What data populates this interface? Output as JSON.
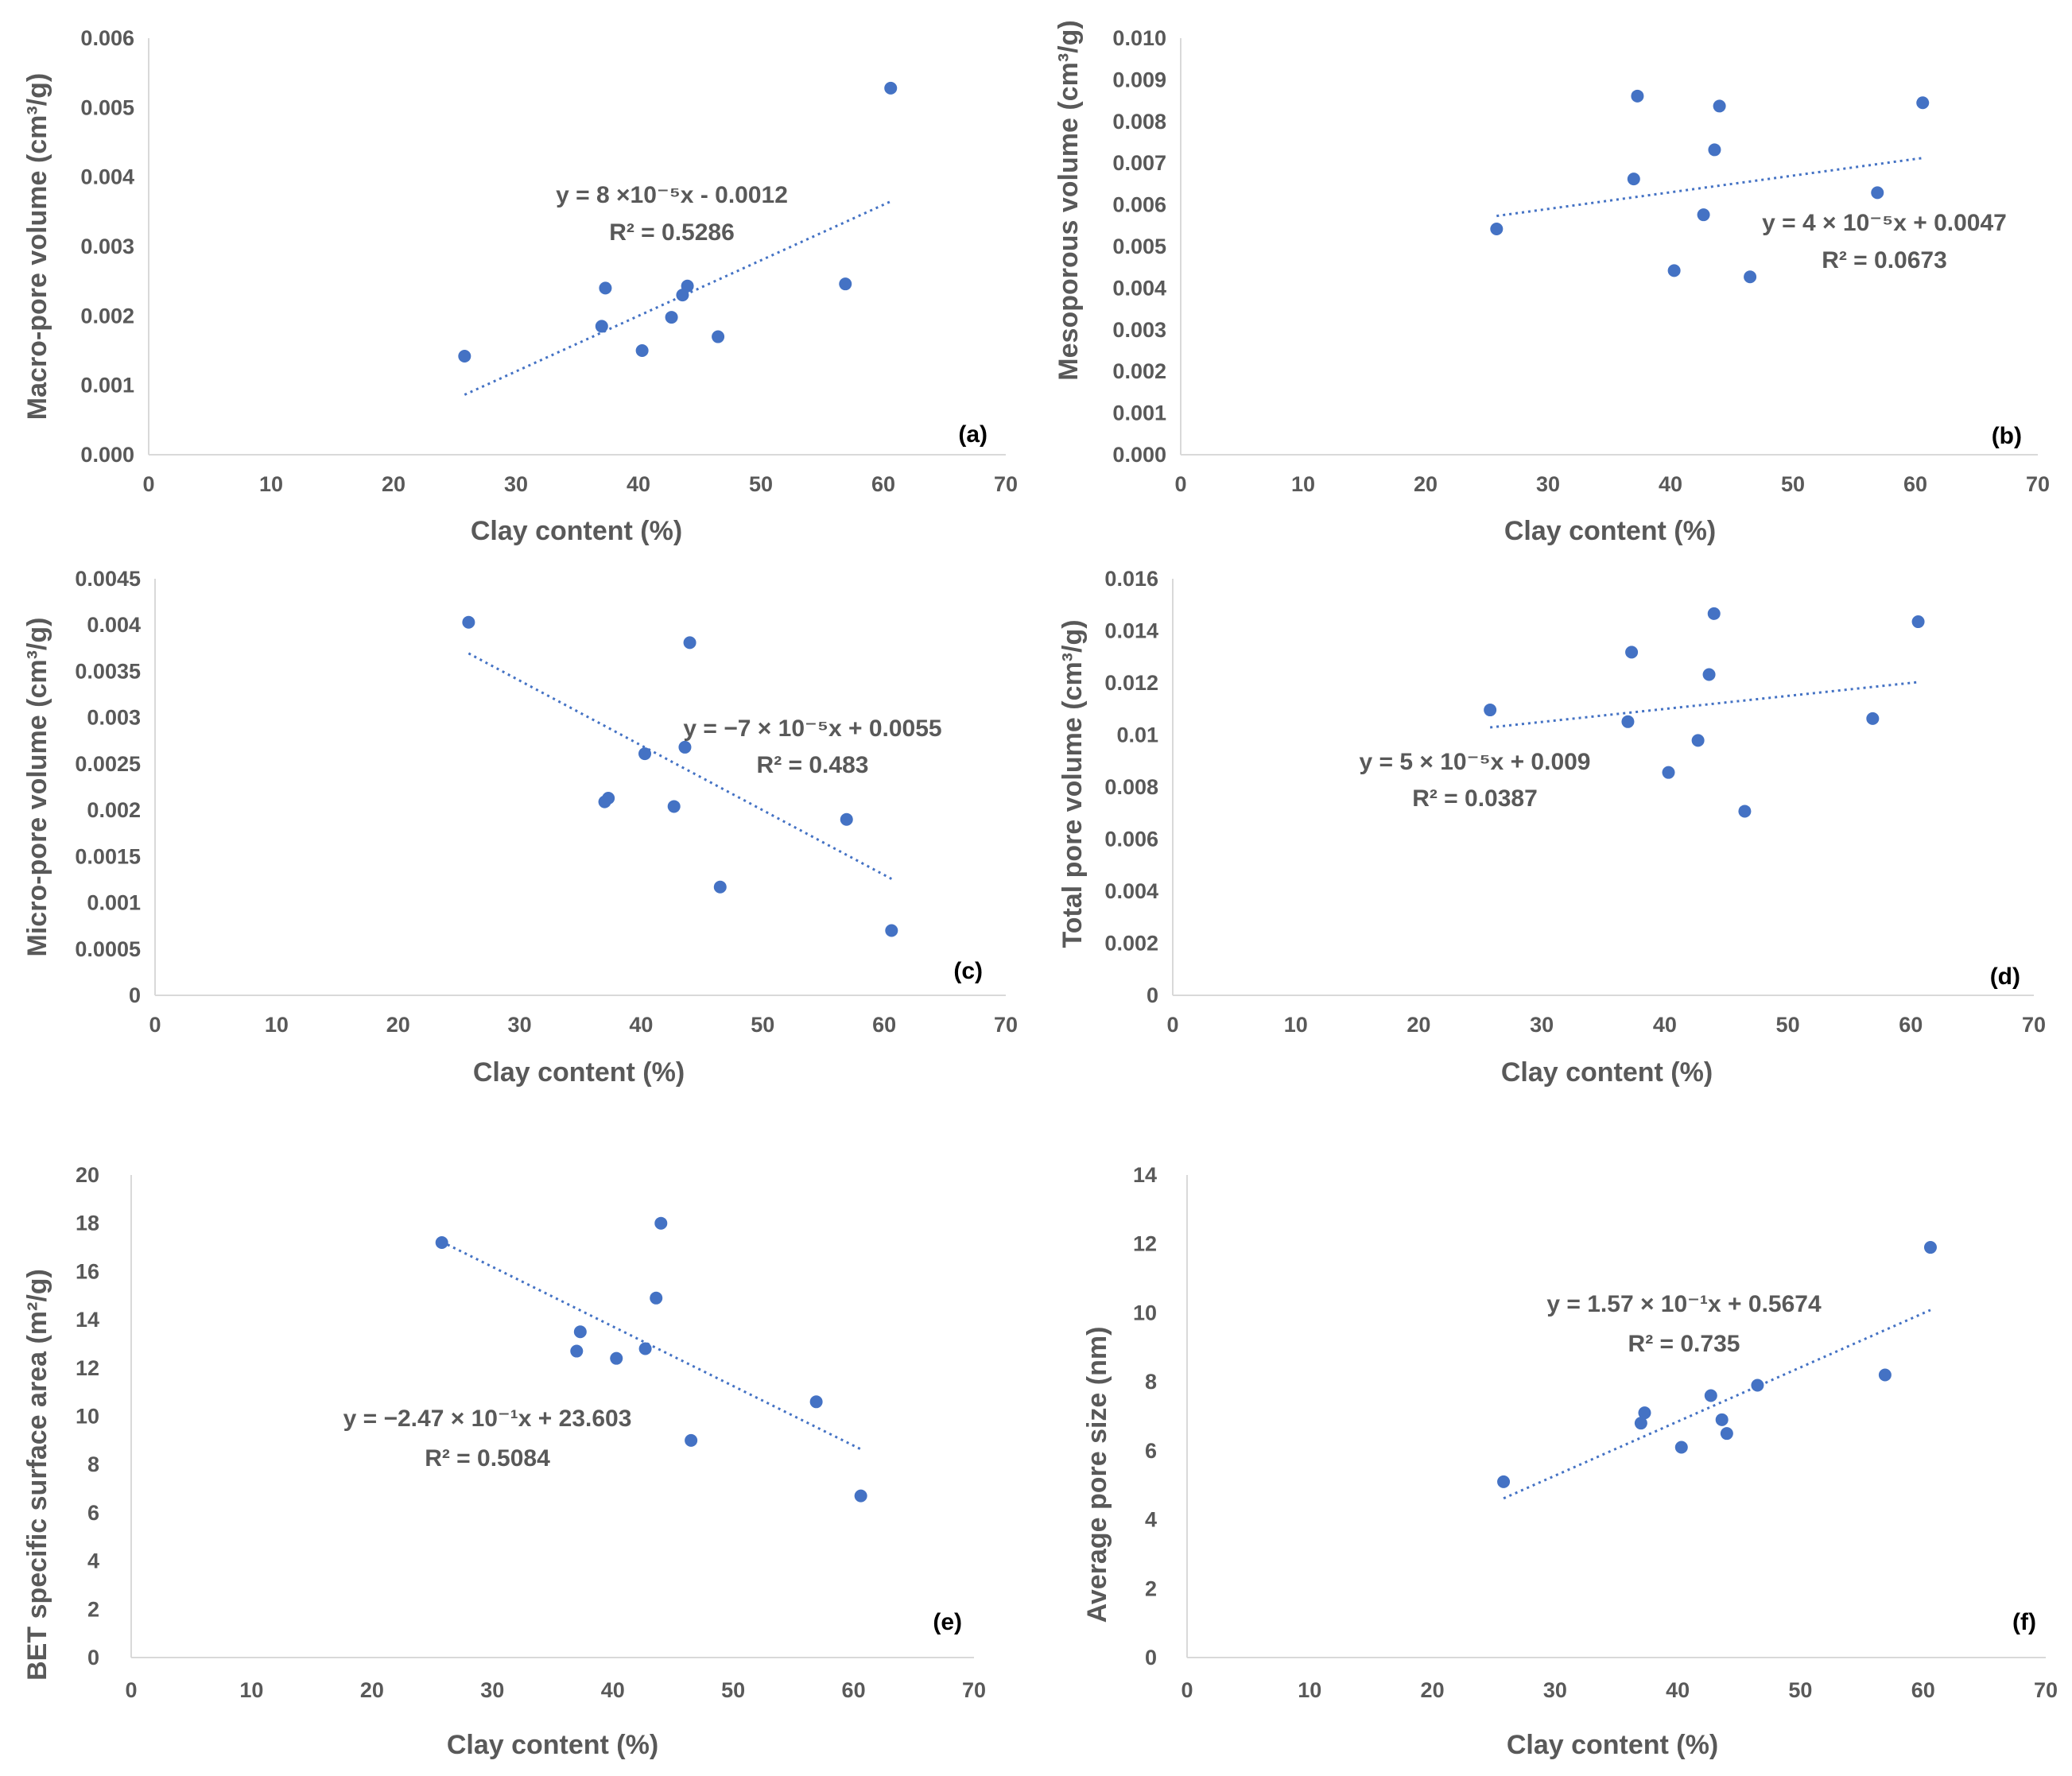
{
  "colors": {
    "marker": "#4472c4",
    "trendline": "#4472c4",
    "text": "#595959",
    "axis": "#d9d9d9"
  },
  "chart_data": [
    {
      "type": "scatter",
      "panel_label": "(a)",
      "xlabel": "Clay content (%)",
      "ylabel": "Macro-pore volume (cm³/g)",
      "xlim": [
        0,
        70
      ],
      "ylim": [
        0,
        0.006
      ],
      "xticks": [
        "0",
        "10",
        "20",
        "30",
        "40",
        "50",
        "60",
        "70"
      ],
      "yticks": [
        "0.000",
        "0.001",
        "0.002",
        "0.003",
        "0.004",
        "0.005",
        "0.006"
      ],
      "grid": false,
      "legend": "none",
      "points": [
        [
          25.8,
          0.00142
        ],
        [
          37.0,
          0.00185
        ],
        [
          37.3,
          0.0024
        ],
        [
          40.3,
          0.0015
        ],
        [
          42.7,
          0.00198
        ],
        [
          43.6,
          0.0023
        ],
        [
          44.0,
          0.00243
        ],
        [
          46.5,
          0.0017
        ],
        [
          56.9,
          0.00246
        ],
        [
          60.6,
          0.00528
        ]
      ],
      "trendline": {
        "x": [
          25.8,
          60.6
        ],
        "slope": 8e-05,
        "intercept": -0.0012,
        "equation": "y = 8 ×10⁻⁵x - 0.0012",
        "r2": "R² = 0.5286"
      }
    },
    {
      "type": "scatter",
      "panel_label": "(b)",
      "xlabel": "Clay content (%)",
      "ylabel": "Mesoporous volume (cm³/g)",
      "xlim": [
        0,
        70
      ],
      "ylim": [
        0,
        0.01
      ],
      "xticks": [
        "0",
        "10",
        "20",
        "30",
        "40",
        "50",
        "60",
        "70"
      ],
      "yticks": [
        "0.000",
        "0.001",
        "0.002",
        "0.003",
        "0.004",
        "0.005",
        "0.006",
        "0.007",
        "0.008",
        "0.009",
        "0.010"
      ],
      "grid": false,
      "legend": "none",
      "points": [
        [
          25.8,
          0.00542
        ],
        [
          37.0,
          0.00662
        ],
        [
          37.3,
          0.00861
        ],
        [
          40.3,
          0.00442
        ],
        [
          42.7,
          0.00576
        ],
        [
          43.6,
          0.00732
        ],
        [
          44.0,
          0.00837
        ],
        [
          46.5,
          0.00427
        ],
        [
          56.9,
          0.00629
        ],
        [
          60.6,
          0.00845
        ]
      ],
      "trendline": {
        "x": [
          25.8,
          60.6
        ],
        "slope": 4e-05,
        "intercept": 0.0047,
        "equation": "y = 4 × 10⁻⁵x + 0.0047",
        "r2": "R² = 0.0673"
      }
    },
    {
      "type": "scatter",
      "panel_label": "(c)",
      "xlabel": "Clay content (%)",
      "ylabel": "Micro-pore volume (cm³/g)",
      "xlim": [
        0,
        70
      ],
      "ylim": [
        0,
        0.0045
      ],
      "xticks": [
        "0",
        "10",
        "20",
        "30",
        "40",
        "50",
        "60",
        "70"
      ],
      "yticks": [
        "0",
        "0.0005",
        "0.001",
        "0.0015",
        "0.002",
        "0.0025",
        "0.003",
        "0.0035",
        "0.004",
        "0.0045"
      ],
      "grid": false,
      "legend": "none",
      "points": [
        [
          25.8,
          0.00403
        ],
        [
          37.0,
          0.00209
        ],
        [
          37.3,
          0.00213
        ],
        [
          40.3,
          0.00261
        ],
        [
          42.7,
          0.00204
        ],
        [
          43.6,
          0.00268
        ],
        [
          44.0,
          0.00381
        ],
        [
          46.5,
          0.00117
        ],
        [
          56.9,
          0.0019
        ],
        [
          60.6,
          0.0007
        ]
      ],
      "trendline": {
        "x": [
          25.8,
          60.6
        ],
        "slope": -7e-05,
        "intercept": 0.0055,
        "equation": "y = −7 × 10⁻⁵x + 0.0055",
        "r2": "R² = 0.483"
      }
    },
    {
      "type": "scatter",
      "panel_label": "(d)",
      "xlabel": "Clay content (%)",
      "ylabel": "Total pore volume (cm³/g)",
      "xlim": [
        0,
        70
      ],
      "ylim": [
        0,
        0.016
      ],
      "xticks": [
        "0",
        "10",
        "20",
        "30",
        "40",
        "50",
        "60",
        "70"
      ],
      "yticks": [
        "0",
        "0.002",
        "0.004",
        "0.006",
        "0.008",
        "0.01",
        "0.012",
        "0.014",
        "0.016"
      ],
      "grid": false,
      "legend": "none",
      "points": [
        [
          25.8,
          0.01096
        ],
        [
          37.0,
          0.01051
        ],
        [
          37.3,
          0.01318
        ],
        [
          40.3,
          0.00856
        ],
        [
          42.7,
          0.00979
        ],
        [
          43.6,
          0.01232
        ],
        [
          44.0,
          0.01466
        ],
        [
          46.5,
          0.00707
        ],
        [
          56.9,
          0.01063
        ],
        [
          60.6,
          0.01435
        ]
      ],
      "trendline": {
        "x": [
          25.8,
          60.6
        ],
        "slope": 5e-05,
        "intercept": 0.009,
        "equation": "y = 5 × 10⁻⁵x + 0.009",
        "r2": "R² = 0.0387"
      }
    },
    {
      "type": "scatter",
      "panel_label": "(e)",
      "xlabel": "Clay content (%)",
      "ylabel": "BET specific surface area (m²/g)",
      "xlim": [
        0,
        70
      ],
      "ylim": [
        0,
        20
      ],
      "xticks": [
        "0",
        "10",
        "20",
        "30",
        "40",
        "50",
        "60",
        "70"
      ],
      "yticks": [
        "0",
        "2",
        "4",
        "6",
        "8",
        "10",
        "12",
        "14",
        "16",
        "18",
        "20"
      ],
      "grid": false,
      "legend": "none",
      "points": [
        [
          25.8,
          17.2
        ],
        [
          37.0,
          12.7
        ],
        [
          37.3,
          13.5
        ],
        [
          40.3,
          12.4
        ],
        [
          42.7,
          12.8
        ],
        [
          43.6,
          14.9
        ],
        [
          44.0,
          18.0
        ],
        [
          46.5,
          9.0
        ],
        [
          56.9,
          10.6
        ],
        [
          60.6,
          6.7
        ]
      ],
      "trendline": {
        "x": [
          25.8,
          60.6
        ],
        "slope": -0.247,
        "intercept": 23.603,
        "equation": "y = −2.47 × 10⁻¹x + 23.603",
        "r2": "R² = 0.5084"
      }
    },
    {
      "type": "scatter",
      "panel_label": "(f)",
      "xlabel": "Clay content (%)",
      "ylabel": "Average pore size  (nm)",
      "xlim": [
        0,
        70
      ],
      "ylim": [
        0,
        14
      ],
      "xticks": [
        "0",
        "10",
        "20",
        "30",
        "40",
        "50",
        "60",
        "70"
      ],
      "yticks": [
        "0",
        "2",
        "4",
        "6",
        "8",
        "10",
        "12",
        "14"
      ],
      "grid": false,
      "legend": "none",
      "points": [
        [
          25.8,
          5.1
        ],
        [
          37.0,
          6.8
        ],
        [
          37.3,
          7.1
        ],
        [
          40.3,
          6.1
        ],
        [
          42.7,
          7.6
        ],
        [
          43.6,
          6.9
        ],
        [
          44.0,
          6.5
        ],
        [
          46.5,
          7.9
        ],
        [
          56.9,
          8.2
        ],
        [
          60.6,
          11.9
        ]
      ],
      "trendline": {
        "x": [
          25.8,
          60.6
        ],
        "slope": 0.157,
        "intercept": 0.5674,
        "equation": "y = 1.57 × 10⁻¹x + 0.5674",
        "r2": "R² = 0.735"
      }
    }
  ]
}
